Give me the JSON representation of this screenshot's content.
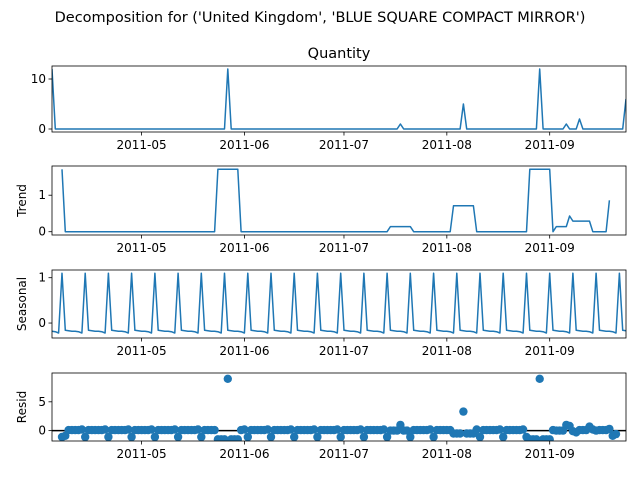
{
  "figure": {
    "suptitle": "Decomposition for ('United Kingdom', 'BLUE SQUARE COMPACT MIRROR')"
  },
  "chart_data": [
    {
      "type": "line",
      "panel": "observed",
      "title": "Quantity",
      "xlabel": "",
      "ylabel": "",
      "color": "#1f77b4",
      "xlim": [
        "2011-04-04",
        "2011-09-24"
      ],
      "ylim": [
        -0.6,
        12.6
      ],
      "yticks": [
        0,
        10
      ],
      "xticks": [
        "2011-05-01",
        "2011-06-01",
        "2011-07-01",
        "2011-08-01",
        "2011-09-01"
      ],
      "xtick_labels": [
        "2011-05",
        "2011-06",
        "2011-07",
        "2011-08",
        "2011-09"
      ],
      "x": [
        "2011-04-04",
        "2011-04-05",
        "2011-05-26",
        "2011-05-27",
        "2011-05-28",
        "2011-07-17",
        "2011-07-18",
        "2011-07-19",
        "2011-08-05",
        "2011-08-06",
        "2011-08-07",
        "2011-08-28",
        "2011-08-29",
        "2011-08-30",
        "2011-09-05",
        "2011-09-06",
        "2011-09-07",
        "2011-09-09",
        "2011-09-10",
        "2011-09-11",
        "2011-09-23",
        "2011-09-24"
      ],
      "y": [
        12,
        0,
        0,
        12,
        0,
        0,
        1,
        0,
        0,
        5,
        0,
        0,
        12,
        0,
        0,
        1,
        0,
        0,
        2,
        0,
        0,
        6
      ]
    },
    {
      "type": "line",
      "panel": "trend",
      "title": "",
      "xlabel": "",
      "ylabel": "Trend",
      "color": "#1f77b4",
      "xlim": [
        "2011-04-04",
        "2011-09-24"
      ],
      "ylim": [
        -0.09,
        1.8
      ],
      "yticks": [
        0,
        1
      ],
      "xticks": [
        "2011-05-01",
        "2011-06-01",
        "2011-07-01",
        "2011-08-01",
        "2011-09-01"
      ],
      "xtick_labels": [
        "2011-05",
        "2011-06",
        "2011-07",
        "2011-08",
        "2011-09"
      ],
      "x": [
        "2011-04-07",
        "2011-04-08",
        "2011-05-23",
        "2011-05-24",
        "2011-05-30",
        "2011-05-31",
        "2011-07-14",
        "2011-07-15",
        "2011-07-21",
        "2011-07-22",
        "2011-08-02",
        "2011-08-03",
        "2011-08-09",
        "2011-08-10",
        "2011-08-25",
        "2011-08-26",
        "2011-09-01",
        "2011-09-02",
        "2011-09-03",
        "2011-09-06",
        "2011-09-07",
        "2011-09-08",
        "2011-09-13",
        "2011-09-14",
        "2011-09-18",
        "2011-09-19"
      ],
      "y": [
        1.71,
        0,
        0,
        1.71,
        1.71,
        0,
        0,
        0.14,
        0.14,
        0,
        0,
        0.71,
        0.71,
        0,
        0,
        1.71,
        1.71,
        0,
        0.14,
        0.14,
        0.43,
        0.29,
        0.29,
        0,
        0,
        0.86
      ]
    },
    {
      "type": "line",
      "panel": "seasonal",
      "title": "",
      "xlabel": "",
      "ylabel": "Seasonal",
      "color": "#1f77b4",
      "xlim": [
        "2011-04-04",
        "2011-09-24"
      ],
      "ylim": [
        -0.33,
        1.17
      ],
      "yticks": [
        0,
        1
      ],
      "xticks": [
        "2011-05-01",
        "2011-06-01",
        "2011-07-01",
        "2011-08-01",
        "2011-09-01"
      ],
      "xtick_labels": [
        "2011-05",
        "2011-06",
        "2011-07",
        "2011-08",
        "2011-09"
      ],
      "period_days": 7,
      "pattern": [
        1.1,
        -0.16,
        -0.17,
        -0.18,
        -0.18,
        -0.19,
        -0.22
      ],
      "pattern_start": "2011-04-07",
      "lead_in": {
        "x": [
          "2011-04-04",
          "2011-04-05",
          "2011-04-06"
        ],
        "y": [
          -0.18,
          -0.19,
          -0.22
        ]
      }
    },
    {
      "type": "scatter",
      "panel": "resid",
      "title": "",
      "xlabel": "",
      "ylabel": "Resid",
      "color": "#1f77b4",
      "xlim": [
        "2011-04-04",
        "2011-09-24"
      ],
      "ylim": [
        -1.8,
        10.0
      ],
      "yticks": [
        0,
        5
      ],
      "xticks": [
        "2011-05-01",
        "2011-06-01",
        "2011-07-01",
        "2011-08-01",
        "2011-09-01"
      ],
      "xtick_labels": [
        "2011-05",
        "2011-06",
        "2011-07",
        "2011-08",
        "2011-09"
      ],
      "baseline": 0,
      "points": [
        [
          "2011-04-07",
          -1.1
        ],
        [
          "2011-04-08",
          -0.9
        ],
        [
          "2011-04-09",
          0.1
        ],
        [
          "2011-04-10",
          0.1
        ],
        [
          "2011-04-11",
          0.1
        ],
        [
          "2011-04-12",
          0.1
        ],
        [
          "2011-04-13",
          0.2
        ],
        [
          "2011-04-14",
          -1.1
        ],
        [
          "2011-04-15",
          0.1
        ],
        [
          "2011-04-16",
          0.1
        ],
        [
          "2011-04-17",
          0.1
        ],
        [
          "2011-04-18",
          0.1
        ],
        [
          "2011-04-19",
          0.1
        ],
        [
          "2011-04-20",
          0.2
        ],
        [
          "2011-04-21",
          -1.1
        ],
        [
          "2011-04-22",
          0.1
        ],
        [
          "2011-04-23",
          0.1
        ],
        [
          "2011-04-24",
          0.1
        ],
        [
          "2011-04-25",
          0.1
        ],
        [
          "2011-04-26",
          0.1
        ],
        [
          "2011-04-27",
          0.2
        ],
        [
          "2011-04-28",
          -1.1
        ],
        [
          "2011-04-29",
          0.1
        ],
        [
          "2011-04-30",
          0.1
        ],
        [
          "2011-05-01",
          0.1
        ],
        [
          "2011-05-02",
          0.1
        ],
        [
          "2011-05-03",
          0.1
        ],
        [
          "2011-05-04",
          0.2
        ],
        [
          "2011-05-05",
          -1.1
        ],
        [
          "2011-05-06",
          0.1
        ],
        [
          "2011-05-07",
          0.1
        ],
        [
          "2011-05-08",
          0.1
        ],
        [
          "2011-05-09",
          0.1
        ],
        [
          "2011-05-10",
          0.1
        ],
        [
          "2011-05-11",
          0.2
        ],
        [
          "2011-05-12",
          -1.1
        ],
        [
          "2011-05-13",
          0.1
        ],
        [
          "2011-05-14",
          0.1
        ],
        [
          "2011-05-15",
          0.1
        ],
        [
          "2011-05-16",
          0.1
        ],
        [
          "2011-05-17",
          0.1
        ],
        [
          "2011-05-18",
          0.2
        ],
        [
          "2011-05-19",
          -1.1
        ],
        [
          "2011-05-20",
          0.1
        ],
        [
          "2011-05-21",
          0.1
        ],
        [
          "2011-05-22",
          0.1
        ],
        [
          "2011-05-23",
          0.1
        ],
        [
          "2011-05-24",
          -1.5
        ],
        [
          "2011-05-25",
          -1.5
        ],
        [
          "2011-05-26",
          -1.5
        ],
        [
          "2011-05-27",
          9.0
        ],
        [
          "2011-05-28",
          -1.5
        ],
        [
          "2011-05-29",
          -1.5
        ],
        [
          "2011-05-30",
          -1.5
        ],
        [
          "2011-05-31",
          0.1
        ],
        [
          "2011-06-01",
          0.2
        ],
        [
          "2011-06-02",
          -1.1
        ],
        [
          "2011-06-03",
          0.1
        ],
        [
          "2011-06-04",
          0.1
        ],
        [
          "2011-06-05",
          0.1
        ],
        [
          "2011-06-06",
          0.1
        ],
        [
          "2011-06-07",
          0.1
        ],
        [
          "2011-06-08",
          0.2
        ],
        [
          "2011-06-09",
          -1.1
        ],
        [
          "2011-06-10",
          0.1
        ],
        [
          "2011-06-11",
          0.1
        ],
        [
          "2011-06-12",
          0.1
        ],
        [
          "2011-06-13",
          0.1
        ],
        [
          "2011-06-14",
          0.1
        ],
        [
          "2011-06-15",
          0.2
        ],
        [
          "2011-06-16",
          -1.1
        ],
        [
          "2011-06-17",
          0.1
        ],
        [
          "2011-06-18",
          0.1
        ],
        [
          "2011-06-19",
          0.1
        ],
        [
          "2011-06-20",
          0.1
        ],
        [
          "2011-06-21",
          0.1
        ],
        [
          "2011-06-22",
          0.2
        ],
        [
          "2011-06-23",
          -1.1
        ],
        [
          "2011-06-24",
          0.1
        ],
        [
          "2011-06-25",
          0.1
        ],
        [
          "2011-06-26",
          0.1
        ],
        [
          "2011-06-27",
          0.1
        ],
        [
          "2011-06-28",
          0.1
        ],
        [
          "2011-06-29",
          0.2
        ],
        [
          "2011-06-30",
          -1.1
        ],
        [
          "2011-07-01",
          0.1
        ],
        [
          "2011-07-02",
          0.1
        ],
        [
          "2011-07-03",
          0.1
        ],
        [
          "2011-07-04",
          0.1
        ],
        [
          "2011-07-05",
          0.1
        ],
        [
          "2011-07-06",
          0.2
        ],
        [
          "2011-07-07",
          -1.1
        ],
        [
          "2011-07-08",
          0.1
        ],
        [
          "2011-07-09",
          0.1
        ],
        [
          "2011-07-10",
          0.1
        ],
        [
          "2011-07-11",
          0.1
        ],
        [
          "2011-07-12",
          0.1
        ],
        [
          "2011-07-13",
          0.2
        ],
        [
          "2011-07-14",
          -1.1
        ],
        [
          "2011-07-15",
          0.0
        ],
        [
          "2011-07-16",
          0.0
        ],
        [
          "2011-07-17",
          0.0
        ],
        [
          "2011-07-18",
          1.0
        ],
        [
          "2011-07-19",
          0.0
        ],
        [
          "2011-07-20",
          0.0
        ],
        [
          "2011-07-21",
          -1.1
        ],
        [
          "2011-07-22",
          0.1
        ],
        [
          "2011-07-23",
          0.1
        ],
        [
          "2011-07-24",
          0.1
        ],
        [
          "2011-07-25",
          0.1
        ],
        [
          "2011-07-26",
          0.1
        ],
        [
          "2011-07-27",
          0.2
        ],
        [
          "2011-07-28",
          -1.1
        ],
        [
          "2011-07-29",
          0.1
        ],
        [
          "2011-07-30",
          0.1
        ],
        [
          "2011-07-31",
          0.1
        ],
        [
          "2011-08-01",
          0.1
        ],
        [
          "2011-08-02",
          0.1
        ],
        [
          "2011-08-03",
          -0.5
        ],
        [
          "2011-08-04",
          -0.5
        ],
        [
          "2011-08-05",
          -0.5
        ],
        [
          "2011-08-06",
          3.3
        ],
        [
          "2011-08-07",
          -0.5
        ],
        [
          "2011-08-08",
          -0.5
        ],
        [
          "2011-08-09",
          -0.5
        ],
        [
          "2011-08-10",
          0.2
        ],
        [
          "2011-08-11",
          -1.1
        ],
        [
          "2011-08-12",
          0.1
        ],
        [
          "2011-08-13",
          0.1
        ],
        [
          "2011-08-14",
          0.1
        ],
        [
          "2011-08-15",
          0.1
        ],
        [
          "2011-08-16",
          0.1
        ],
        [
          "2011-08-17",
          0.2
        ],
        [
          "2011-08-18",
          -1.1
        ],
        [
          "2011-08-19",
          0.1
        ],
        [
          "2011-08-20",
          0.1
        ],
        [
          "2011-08-21",
          0.1
        ],
        [
          "2011-08-22",
          0.1
        ],
        [
          "2011-08-23",
          0.1
        ],
        [
          "2011-08-24",
          0.2
        ],
        [
          "2011-08-25",
          -1.1
        ],
        [
          "2011-08-26",
          -1.5
        ],
        [
          "2011-08-27",
          -1.5
        ],
        [
          "2011-08-28",
          -1.5
        ],
        [
          "2011-08-29",
          9.0
        ],
        [
          "2011-08-30",
          -1.5
        ],
        [
          "2011-08-31",
          -1.5
        ],
        [
          "2011-09-01",
          -1.5
        ],
        [
          "2011-09-02",
          0.1
        ],
        [
          "2011-09-03",
          0.0
        ],
        [
          "2011-09-04",
          0.0
        ],
        [
          "2011-09-05",
          0.0
        ],
        [
          "2011-09-06",
          1.0
        ],
        [
          "2011-09-07",
          0.8
        ],
        [
          "2011-09-08",
          -0.1
        ],
        [
          "2011-09-09",
          -0.3
        ],
        [
          "2011-09-10",
          0.1
        ],
        [
          "2011-09-11",
          0.1
        ],
        [
          "2011-09-12",
          0.1
        ],
        [
          "2011-09-13",
          0.7
        ],
        [
          "2011-09-14",
          0.2
        ],
        [
          "2011-09-15",
          0.0
        ],
        [
          "2011-09-16",
          0.1
        ],
        [
          "2011-09-17",
          0.1
        ],
        [
          "2011-09-18",
          0.1
        ],
        [
          "2011-09-19",
          0.3
        ],
        [
          "2011-09-20",
          -0.9
        ],
        [
          "2011-09-21",
          -0.6
        ]
      ]
    }
  ]
}
